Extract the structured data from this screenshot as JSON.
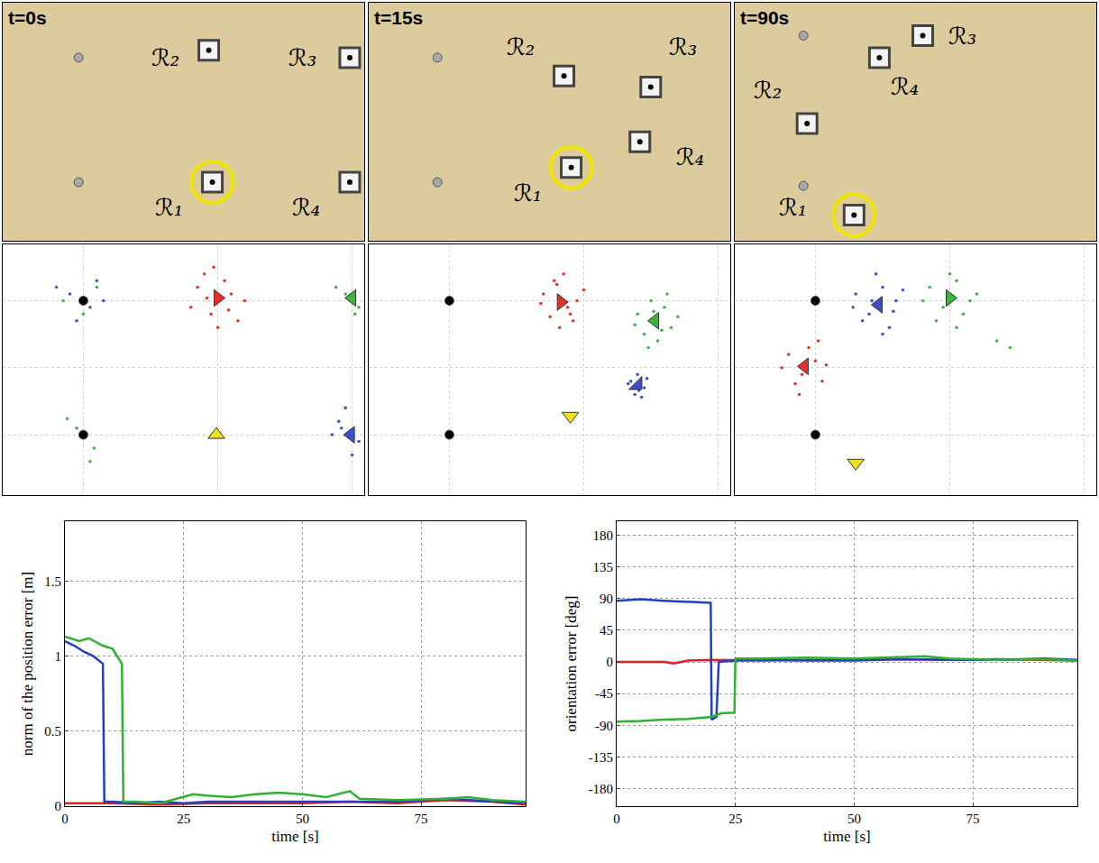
{
  "chart_data": [
    {
      "type": "scene",
      "title": "t=0s",
      "tick_labels": false,
      "xlim": [
        0,
        10
      ],
      "ylim": [
        0,
        6.5
      ],
      "annotations": [
        {
          "text": "ℛ₂",
          "x": 4.5,
          "y": 5.0
        },
        {
          "text": "ℛ₃",
          "x": 8.3,
          "y": 5.0
        },
        {
          "text": "ℛ₁",
          "x": 4.6,
          "y": 0.9
        },
        {
          "text": "ℛ₄",
          "x": 8.4,
          "y": 0.9
        }
      ],
      "series": [
        {
          "marker": "circle",
          "color": "#a8a8a8",
          "x": [
            2.1,
            2.1
          ],
          "y": [
            5.0,
            1.6
          ]
        },
        {
          "marker": "square",
          "color": "#f4f4f4",
          "x": [
            5.7,
            9.6,
            5.8,
            9.6
          ],
          "y": [
            5.2,
            5.0,
            1.6,
            1.6
          ]
        },
        {
          "marker": "circle-open",
          "color": "#f2e600",
          "x": [
            5.8
          ],
          "y": [
            1.6
          ]
        }
      ]
    },
    {
      "type": "scene",
      "title": "t=15s",
      "tick_labels": false,
      "xlim": [
        0,
        10
      ],
      "ylim": [
        0,
        6.5
      ],
      "annotations": [
        {
          "text": "ℛ₂",
          "x": 4.2,
          "y": 5.3
        },
        {
          "text": "ℛ₃",
          "x": 8.7,
          "y": 5.3
        },
        {
          "text": "ℛ₄",
          "x": 8.9,
          "y": 2.3
        },
        {
          "text": "ℛ₁",
          "x": 4.4,
          "y": 1.3
        }
      ],
      "series": [
        {
          "marker": "circle",
          "color": "#a8a8a8",
          "x": [
            1.9,
            1.9
          ],
          "y": [
            5.0,
            1.6
          ]
        },
        {
          "marker": "square",
          "color": "#f4f4f4",
          "x": [
            5.4,
            7.8,
            7.5,
            5.6
          ],
          "y": [
            4.5,
            4.2,
            2.7,
            2.0
          ]
        },
        {
          "marker": "circle-open",
          "color": "#f2e600",
          "x": [
            5.6
          ],
          "y": [
            2.0
          ]
        }
      ]
    },
    {
      "type": "scene",
      "title": "t=90s",
      "tick_labels": false,
      "xlim": [
        0,
        10
      ],
      "ylim": [
        0,
        6.5
      ],
      "annotations": [
        {
          "text": "ℛ₂",
          "x": 0.9,
          "y": 4.1
        },
        {
          "text": "ℛ₄",
          "x": 4.7,
          "y": 4.2
        },
        {
          "text": "ℛ₃",
          "x": 6.3,
          "y": 5.6
        },
        {
          "text": "ℛ₁",
          "x": 1.6,
          "y": 0.9
        }
      ],
      "series": [
        {
          "marker": "circle",
          "color": "#a8a8a8",
          "x": [
            1.9,
            1.9
          ],
          "y": [
            5.6,
            1.5
          ]
        },
        {
          "marker": "square",
          "color": "#f4f4f4",
          "x": [
            2.0,
            4.0,
            5.2,
            3.3
          ],
          "y": [
            3.2,
            5.0,
            5.6,
            0.7
          ]
        },
        {
          "marker": "circle-open",
          "color": "#f2e600",
          "x": [
            3.3
          ],
          "y": [
            0.7
          ]
        }
      ]
    },
    {
      "type": "scatter",
      "grid": true,
      "tick_labels": false,
      "xlim": [
        -0.6,
        2.09
      ],
      "ylim": [
        -0.45,
        1.42
      ],
      "xticks": [
        0,
        1,
        2
      ],
      "yticks": [
        0,
        0.5,
        1
      ],
      "series": [
        {
          "marker": "dot",
          "color": "#e8302a",
          "x": [
            0.85,
            0.95,
            1.1,
            1.15,
            0.9,
            1.05,
            0.8,
            1.2,
            1.0,
            0.92,
            1.08,
            0.97
          ],
          "y": [
            1.1,
            0.9,
            1.05,
            0.85,
            1.2,
            1.15,
            0.95,
            1.0,
            0.8,
            1.02,
            0.93,
            1.25
          ]
        },
        {
          "marker": "dot",
          "color": "#3a4fc8",
          "x": [
            -0.1,
            0.05,
            -0.2,
            0.1,
            -0.05,
            0.15,
            1.9,
            2.05,
            1.95,
            1.85,
            2.0,
            1.92
          ],
          "y": [
            1.05,
            0.95,
            1.1,
            1.15,
            0.85,
            1.0,
            0.1,
            -0.05,
            0.2,
            0.0,
            -0.15,
            0.05
          ]
        },
        {
          "marker": "dot",
          "color": "#3cb43c",
          "x": [
            0.0,
            -0.15,
            0.1,
            -0.05,
            0.08,
            -0.12,
            0.05,
            1.95,
            2.02,
            1.88,
            2.05
          ],
          "y": [
            0.9,
            1.0,
            1.1,
            0.05,
            -0.1,
            0.12,
            -0.2,
            1.05,
            0.9,
            1.1,
            0.95
          ]
        },
        {
          "marker": "circle",
          "color": "#000000",
          "x": [
            0,
            0
          ],
          "y": [
            1.0,
            0.0
          ]
        },
        {
          "marker": "triangle-right",
          "color": "#e8302a",
          "x": [
            1.0
          ],
          "y": [
            1.02
          ]
        },
        {
          "marker": "triangle-left",
          "color": "#3cb43c",
          "x": [
            2.0
          ],
          "y": [
            1.02
          ]
        },
        {
          "marker": "triangle-left",
          "color": "#3a4fc8",
          "x": [
            1.99
          ],
          "y": [
            0.0
          ]
        },
        {
          "marker": "triangle-up",
          "color": "#f0e020",
          "x": [
            0.99
          ],
          "y": [
            0.0
          ]
        }
      ]
    },
    {
      "type": "scatter",
      "grid": true,
      "tick_labels": false,
      "xlim": [
        -0.6,
        2.09
      ],
      "ylim": [
        -0.45,
        1.42
      ],
      "xticks": [
        0,
        1,
        2
      ],
      "yticks": [
        0,
        0.5,
        1
      ],
      "series": [
        {
          "marker": "dot",
          "color": "#e8302a",
          "x": [
            0.7,
            0.8,
            0.9,
            0.95,
            0.75,
            0.85,
            0.68,
            1.0,
            0.82,
            0.92,
            0.78,
            0.88
          ],
          "y": [
            1.05,
            1.12,
            0.9,
            1.0,
            0.88,
            1.2,
            0.98,
            1.08,
            0.8,
            0.85,
            1.15,
            0.95
          ]
        },
        {
          "marker": "dot",
          "color": "#3cb43c",
          "x": [
            1.4,
            1.5,
            1.6,
            1.65,
            1.45,
            1.55,
            1.7,
            1.38,
            1.52,
            1.62,
            1.48,
            1.58
          ],
          "y": [
            0.9,
            1.0,
            0.95,
            0.8,
            0.75,
            0.7,
            0.88,
            0.82,
            0.92,
            1.05,
            0.65,
            0.78
          ]
        },
        {
          "marker": "dot",
          "color": "#3a4fc8",
          "x": [
            1.35,
            1.4,
            1.45,
            1.38,
            1.43,
            1.33,
            1.47,
            1.41
          ],
          "y": [
            0.4,
            0.45,
            0.35,
            0.3,
            0.28,
            0.38,
            0.42,
            0.33
          ]
        },
        {
          "marker": "circle",
          "color": "#000000",
          "x": [
            0,
            0
          ],
          "y": [
            1.0,
            0.0
          ]
        },
        {
          "marker": "triangle-right",
          "color": "#e8302a",
          "x": [
            0.83
          ],
          "y": [
            0.99
          ]
        },
        {
          "marker": "triangle-left",
          "color": "#3cb43c",
          "x": [
            1.53
          ],
          "y": [
            0.85
          ]
        },
        {
          "marker": "triangle-se",
          "color": "#3a4fc8",
          "x": [
            1.4
          ],
          "y": [
            0.37
          ]
        },
        {
          "marker": "triangle-down",
          "color": "#f0e020",
          "x": [
            0.9
          ],
          "y": [
            0.14
          ]
        }
      ]
    },
    {
      "type": "scatter",
      "grid": true,
      "tick_labels": false,
      "xlim": [
        -0.6,
        2.09
      ],
      "ylim": [
        -0.45,
        1.42
      ],
      "xticks": [
        0,
        1,
        2
      ],
      "yticks": [
        0,
        0.5,
        1
      ],
      "series": [
        {
          "marker": "dot",
          "color": "#e8302a",
          "x": [
            -0.2,
            -0.1,
            0.0,
            0.05,
            -0.15,
            -0.05,
            -0.25,
            0.08,
            -0.12,
            0.02
          ],
          "y": [
            0.6,
            0.45,
            0.55,
            0.4,
            0.38,
            0.65,
            0.5,
            0.52,
            0.3,
            0.7
          ]
        },
        {
          "marker": "dot",
          "color": "#3a4fc8",
          "x": [
            0.3,
            0.4,
            0.5,
            0.6,
            0.35,
            0.55,
            0.65,
            0.45,
            0.28,
            0.58,
            0.5,
            0.42
          ],
          "y": [
            1.05,
            0.9,
            1.1,
            1.0,
            0.85,
            0.8,
            1.08,
            1.2,
            0.95,
            0.92,
            0.75,
            1.0
          ]
        },
        {
          "marker": "dot",
          "color": "#3cb43c",
          "x": [
            0.85,
            0.95,
            1.05,
            1.15,
            0.9,
            1.1,
            1.2,
            1.0,
            1.35,
            1.45,
            0.8,
            1.05
          ],
          "y": [
            1.1,
            0.95,
            1.15,
            1.0,
            0.85,
            0.9,
            1.05,
            1.2,
            0.7,
            0.65,
            1.0,
            0.8
          ]
        },
        {
          "marker": "circle",
          "color": "#000000",
          "x": [
            0,
            0
          ],
          "y": [
            1.0,
            0.0
          ]
        },
        {
          "marker": "triangle-left",
          "color": "#e8302a",
          "x": [
            -0.08
          ],
          "y": [
            0.51
          ]
        },
        {
          "marker": "triangle-left",
          "color": "#3a4fc8",
          "x": [
            0.47
          ],
          "y": [
            0.97
          ]
        },
        {
          "marker": "triangle-right",
          "color": "#3cb43c",
          "x": [
            1.0
          ],
          "y": [
            1.02
          ]
        },
        {
          "marker": "triangle-down",
          "color": "#f0e020",
          "x": [
            0.3
          ],
          "y": [
            -0.21
          ]
        }
      ]
    },
    {
      "type": "line",
      "grid": true,
      "x_label": "time [s]",
      "y_label": "norm of the position error [m]",
      "xlim": [
        0,
        97
      ],
      "xticks": [
        0,
        25,
        50,
        75
      ],
      "ylim": [
        0,
        1.9
      ],
      "yticks": [
        0,
        0.5,
        1,
        1.5
      ],
      "series": [
        {
          "color": "#e02020",
          "x": [
            0,
            10,
            20,
            30,
            40,
            50,
            60,
            70,
            80,
            90,
            97
          ],
          "values": [
            0.02,
            0.02,
            0.01,
            0.02,
            0.02,
            0.02,
            0.03,
            0.02,
            0.04,
            0.03,
            0.01
          ]
        },
        {
          "color": "#2040c0",
          "x": [
            0,
            2,
            4,
            6,
            8,
            8.3,
            10,
            15,
            20,
            25,
            30,
            40,
            50,
            60,
            70,
            80,
            85,
            90,
            97
          ],
          "values": [
            1.1,
            1.07,
            1.03,
            1.0,
            0.95,
            0.03,
            0.03,
            0.02,
            0.03,
            0.02,
            0.03,
            0.03,
            0.03,
            0.03,
            0.03,
            0.05,
            0.04,
            0.03,
            0.02
          ]
        },
        {
          "color": "#30b030",
          "x": [
            0,
            3,
            5,
            8,
            10,
            12,
            12.3,
            15,
            20,
            25,
            27,
            30,
            35,
            40,
            45,
            50,
            55,
            60,
            62,
            70,
            80,
            85,
            90,
            97
          ],
          "values": [
            1.13,
            1.1,
            1.12,
            1.07,
            1.05,
            0.95,
            0.03,
            0.03,
            0.02,
            0.06,
            0.08,
            0.07,
            0.06,
            0.08,
            0.09,
            0.08,
            0.06,
            0.1,
            0.05,
            0.04,
            0.05,
            0.06,
            0.04,
            0.03
          ]
        }
      ]
    },
    {
      "type": "line",
      "grid": true,
      "x_label": "time [s]",
      "y_label": "orientation error [deg]",
      "xlim": [
        0,
        97
      ],
      "xticks": [
        0,
        25,
        50,
        75
      ],
      "ylim": [
        -205,
        200
      ],
      "yticks": [
        -180,
        -135,
        -90,
        -45,
        0,
        45,
        90,
        135,
        180
      ],
      "series": [
        {
          "color": "#e02020",
          "x": [
            0,
            10,
            12,
            15,
            20,
            30,
            40,
            50,
            60,
            70,
            80,
            90,
            97
          ],
          "values": [
            0,
            0,
            -2,
            2,
            3,
            2,
            3,
            3,
            4,
            3,
            4,
            3,
            2
          ]
        },
        {
          "color": "#2040c0",
          "x": [
            0,
            5,
            10,
            15,
            19.8,
            20,
            20.5,
            21,
            21.5,
            25,
            30,
            40,
            50,
            60,
            70,
            80,
            90,
            97
          ],
          "values": [
            87,
            89,
            87,
            85,
            84,
            -82,
            -80,
            -78,
            0,
            2,
            3,
            2,
            2,
            4,
            3,
            3,
            5,
            3
          ]
        },
        {
          "color": "#30b030",
          "x": [
            0,
            5,
            10,
            15,
            20,
            22,
            24.8,
            25,
            30,
            40,
            50,
            60,
            65,
            70,
            80,
            90,
            97
          ],
          "values": [
            -85,
            -84,
            -82,
            -81,
            -78,
            -73,
            -72,
            5,
            5,
            6,
            5,
            7,
            8,
            5,
            3,
            4,
            2
          ]
        }
      ]
    }
  ]
}
